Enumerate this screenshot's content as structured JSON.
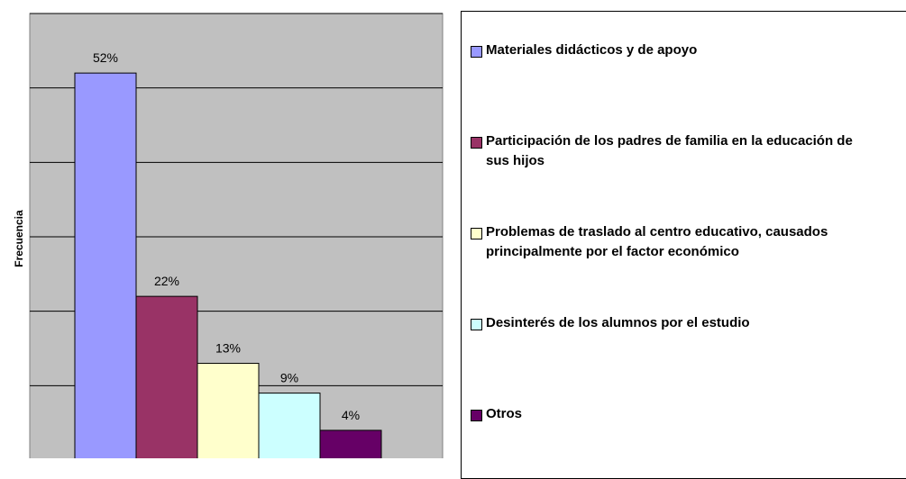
{
  "chart_data": {
    "type": "bar",
    "y_label": "Frecuencia",
    "ylim": [
      0,
      60
    ],
    "yticks": [
      0,
      10,
      20,
      30,
      40,
      50,
      60
    ],
    "grid": true,
    "series": [
      {
        "name": "Materiales didácticos y de apoyo",
        "color": "#9999ff",
        "values": [
          52
        ],
        "value_labels": [
          "52%"
        ]
      },
      {
        "name": "Participación de los padres de familia en la educación de sus hijos",
        "color": "#993366",
        "values": [
          22
        ],
        "value_labels": [
          "22%"
        ]
      },
      {
        "name": "Problemas de traslado al centro educativo, causados principalmente por el factor económico",
        "color": "#ffffcc",
        "values": [
          13
        ],
        "value_labels": [
          "13%"
        ]
      },
      {
        "name": "Desinterés de los alumnos por el estudio",
        "color": "#ccffff",
        "values": [
          9
        ],
        "value_labels": [
          "9%"
        ]
      },
      {
        "name": "Otros",
        "color": "#660066",
        "values": [
          4
        ],
        "value_labels": [
          "4%"
        ]
      }
    ]
  }
}
